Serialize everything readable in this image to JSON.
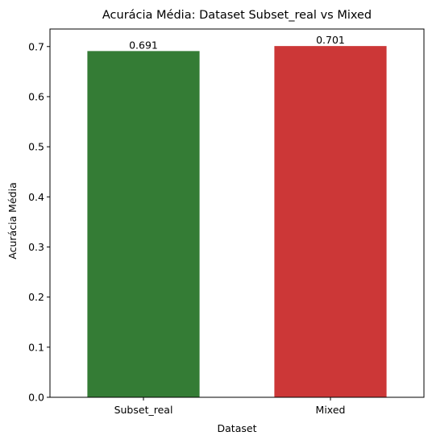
{
  "chart_data": {
    "type": "bar",
    "title": "Acurácia Média: Dataset Subset_real vs Mixed",
    "xlabel": "Dataset",
    "ylabel": "Acurácia Média",
    "categories": [
      "Subset_real",
      "Mixed"
    ],
    "values": [
      0.691,
      0.701
    ],
    "value_labels": [
      "0.691",
      "0.701"
    ],
    "colors": [
      "#347c35",
      "#cc3737"
    ],
    "ylim": [
      0,
      0.735
    ],
    "yticks": [
      0.0,
      0.1,
      0.2,
      0.3,
      0.4,
      0.5,
      0.6,
      0.7
    ],
    "ytick_labels": [
      "0.0",
      "0.1",
      "0.2",
      "0.3",
      "0.4",
      "0.5",
      "0.6",
      "0.7"
    ],
    "grid": false,
    "legend": false
  }
}
